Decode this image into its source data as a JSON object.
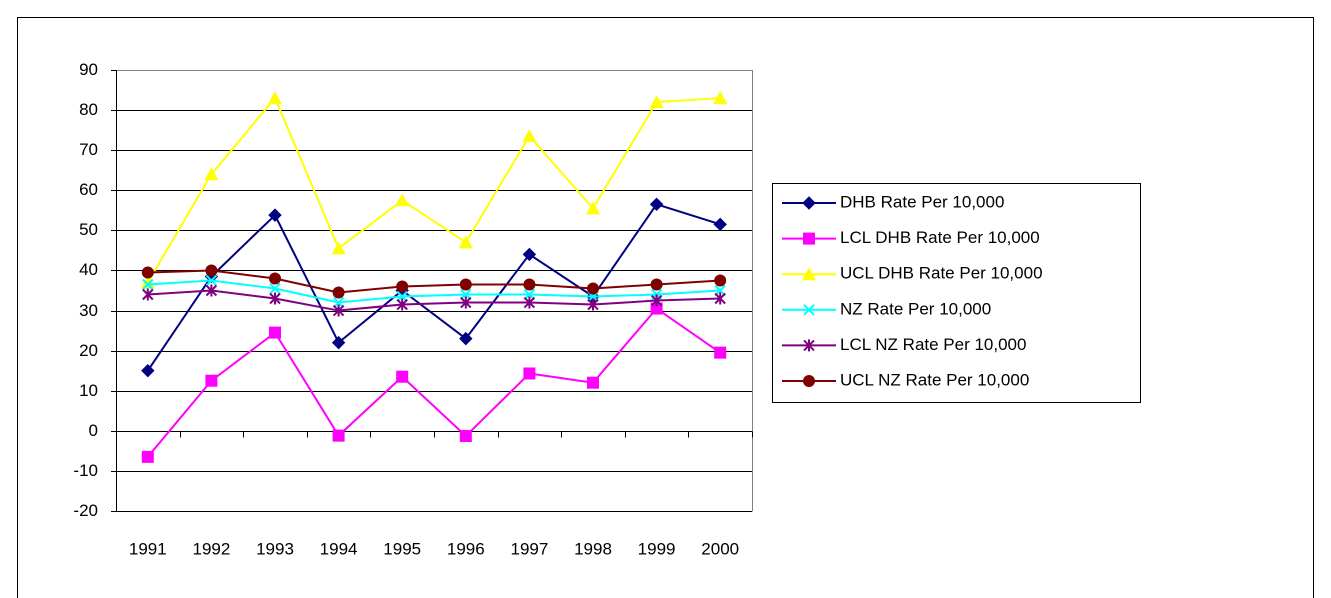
{
  "chart_data": {
    "type": "line",
    "categories": [
      "1991",
      "1992",
      "1993",
      "1994",
      "1995",
      "1996",
      "1997",
      "1998",
      "1999",
      "2000"
    ],
    "series": [
      {
        "name": "DHB Rate Per 10,000",
        "color": "#000080",
        "marker": "diamond",
        "values": [
          15,
          38.5,
          53.8,
          22,
          35,
          23,
          44,
          33.5,
          56.5,
          51.5
        ]
      },
      {
        "name": "LCL DHB Rate Per 10,000",
        "color": "#ff00ff",
        "marker": "square",
        "values": [
          -6.5,
          12.5,
          24.5,
          -1.2,
          13.5,
          -1.3,
          14.3,
          12,
          30.5,
          19.5
        ]
      },
      {
        "name": "UCL DHB Rate Per 10,000",
        "color": "#ffff00",
        "marker": "triangle",
        "values": [
          37,
          64,
          83,
          45.5,
          57.5,
          47,
          73.5,
          55.5,
          82,
          83
        ]
      },
      {
        "name": "NZ Rate Per 10,000",
        "color": "#00ffff",
        "marker": "x",
        "values": [
          36.5,
          37.5,
          35.5,
          32,
          33.5,
          34,
          34,
          33.5,
          34,
          35
        ]
      },
      {
        "name": "LCL NZ Rate Per 10,000",
        "color": "#800080",
        "marker": "star",
        "values": [
          34,
          35,
          33,
          30,
          31.5,
          32,
          32,
          31.5,
          32.5,
          33
        ]
      },
      {
        "name": "UCL NZ Rate Per 10,000",
        "color": "#800000",
        "marker": "circle",
        "values": [
          39.5,
          40,
          38,
          34.5,
          36,
          36.5,
          36.5,
          35.5,
          36.5,
          37.5
        ]
      }
    ],
    "ylim": [
      -20,
      90
    ],
    "yticks": [
      -20,
      -10,
      0,
      10,
      20,
      30,
      40,
      50,
      60,
      70,
      80,
      90
    ],
    "grid": true
  }
}
